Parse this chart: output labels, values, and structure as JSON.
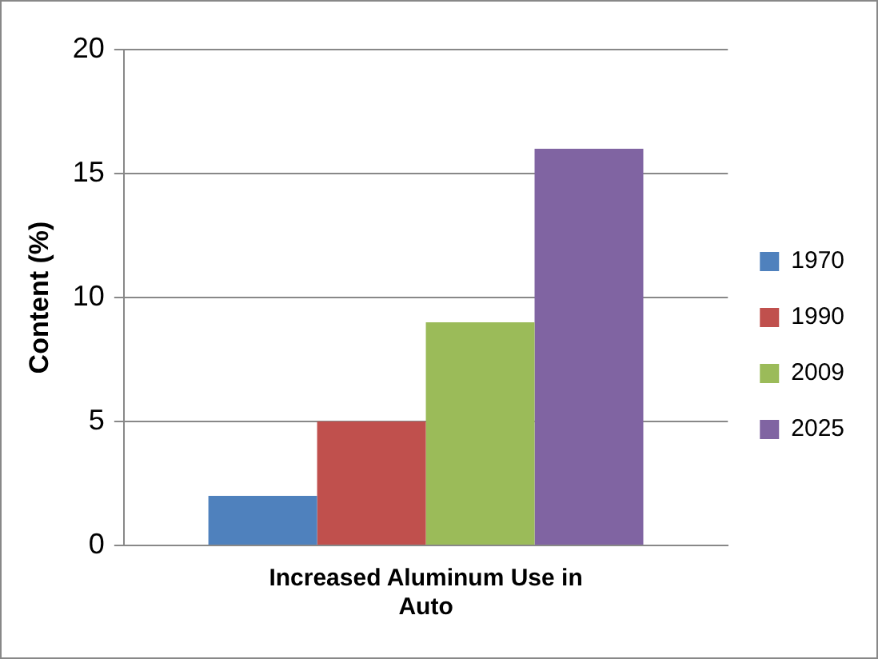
{
  "chart_data": {
    "type": "bar",
    "ylabel": "Content (%)",
    "categories": [
      "Increased Aluminum Use in Auto"
    ],
    "series": [
      {
        "name": "1970",
        "color": "#4f81bd",
        "values": [
          2
        ]
      },
      {
        "name": "1990",
        "color": "#c0504d",
        "values": [
          5
        ]
      },
      {
        "name": "2009",
        "color": "#9bbb59",
        "values": [
          9
        ]
      },
      {
        "name": "2025",
        "color": "#8064a2",
        "values": [
          16
        ]
      }
    ],
    "ylim": [
      0,
      20
    ],
    "yticks": [
      0,
      5,
      10,
      15,
      20
    ],
    "grid": "y",
    "legend": "right"
  }
}
